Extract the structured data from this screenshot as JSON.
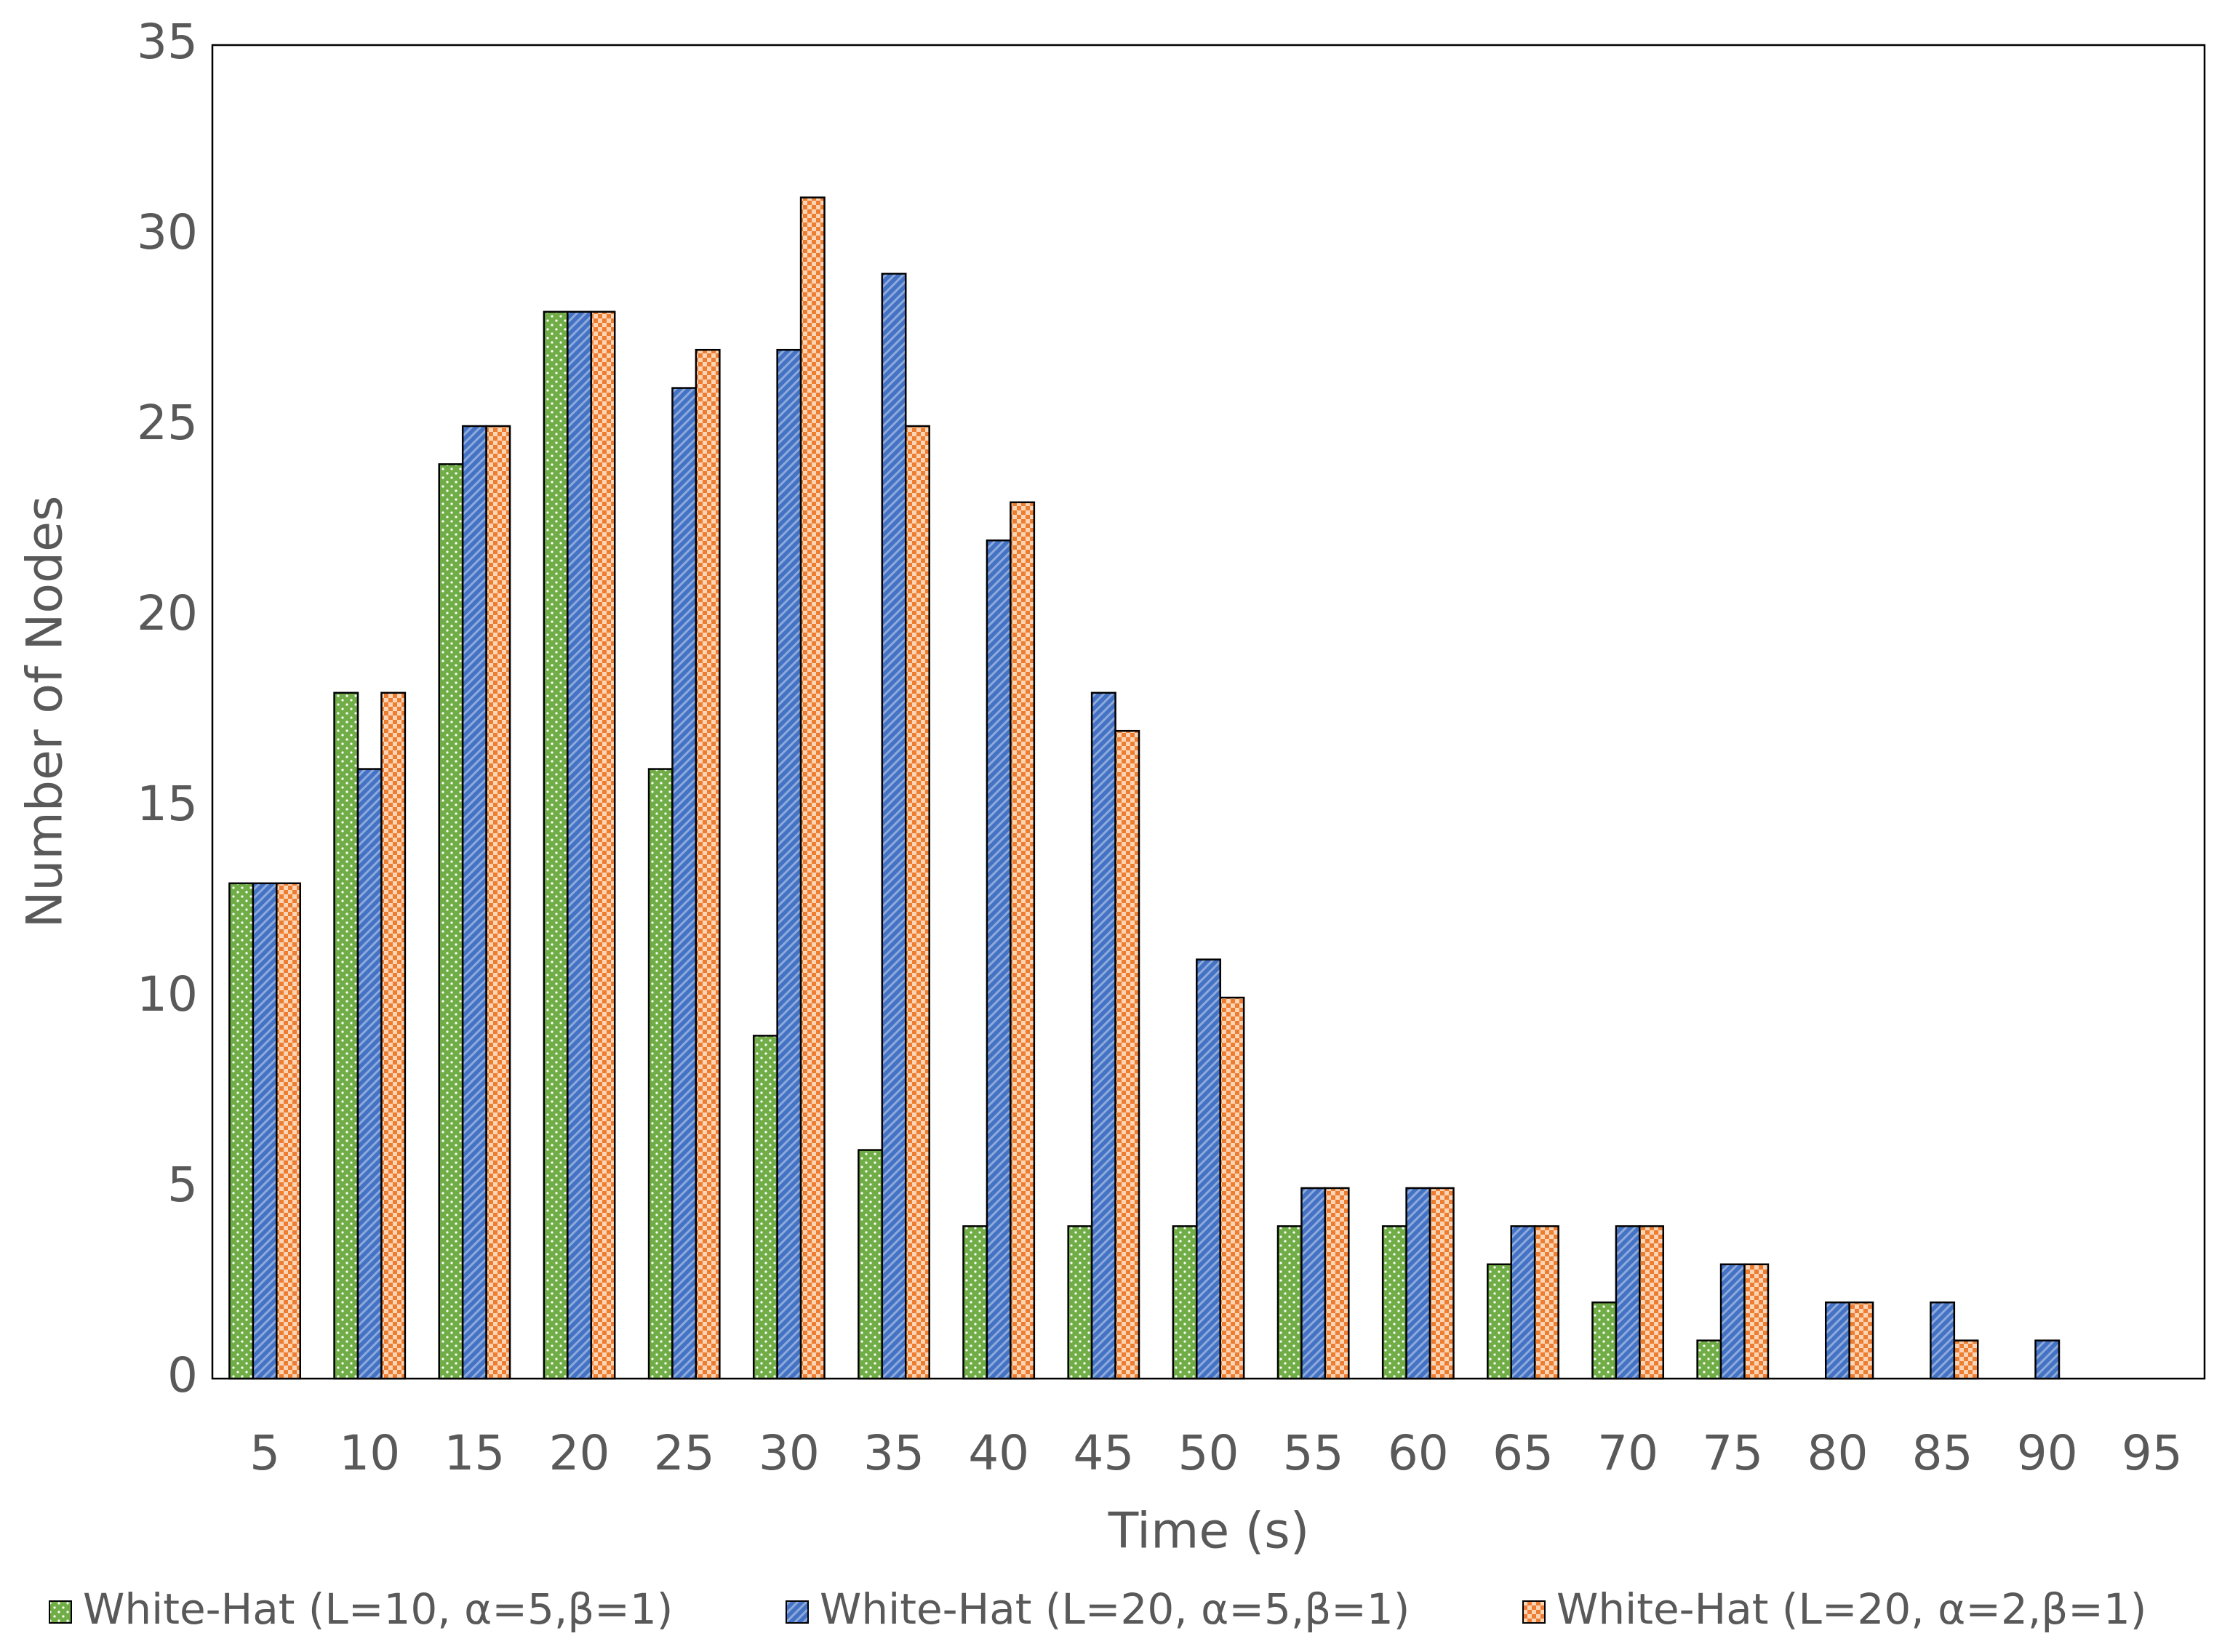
{
  "chart_data": {
    "type": "bar",
    "x_label": "Time (s)",
    "y_label": "Number of Nodes",
    "categories": [
      "5",
      "10",
      "15",
      "20",
      "25",
      "30",
      "35",
      "40",
      "45",
      "50",
      "55",
      "60",
      "65",
      "70",
      "75",
      "80",
      "85",
      "90",
      "95"
    ],
    "series": [
      {
        "name": "White-Hat (L=10, α=5,β=1)",
        "color": "#70ad47",
        "pattern": "dots",
        "values": [
          13,
          18,
          24,
          28,
          16,
          9,
          6,
          4,
          4,
          4,
          4,
          4,
          3,
          2,
          1,
          0,
          0,
          0,
          0
        ]
      },
      {
        "name": "White-Hat (L=20, α=5,β=1)",
        "color": "#4472c4",
        "pattern": "stripes",
        "values": [
          13,
          16,
          25,
          28,
          26,
          27,
          29,
          22,
          18,
          11,
          5,
          5,
          4,
          4,
          3,
          2,
          2,
          1,
          0
        ]
      },
      {
        "name": "White-Hat (L=20, α=2,β=1)",
        "color": "#ed7d31",
        "pattern": "checker",
        "values": [
          13,
          18,
          25,
          28,
          27,
          31,
          25,
          23,
          17,
          10,
          5,
          5,
          4,
          4,
          3,
          2,
          1,
          0,
          0
        ]
      }
    ],
    "ylim": [
      0,
      35
    ],
    "yticks": [
      0,
      5,
      10,
      15,
      20,
      25,
      30,
      35
    ],
    "grid": false,
    "legend": "bottom"
  }
}
